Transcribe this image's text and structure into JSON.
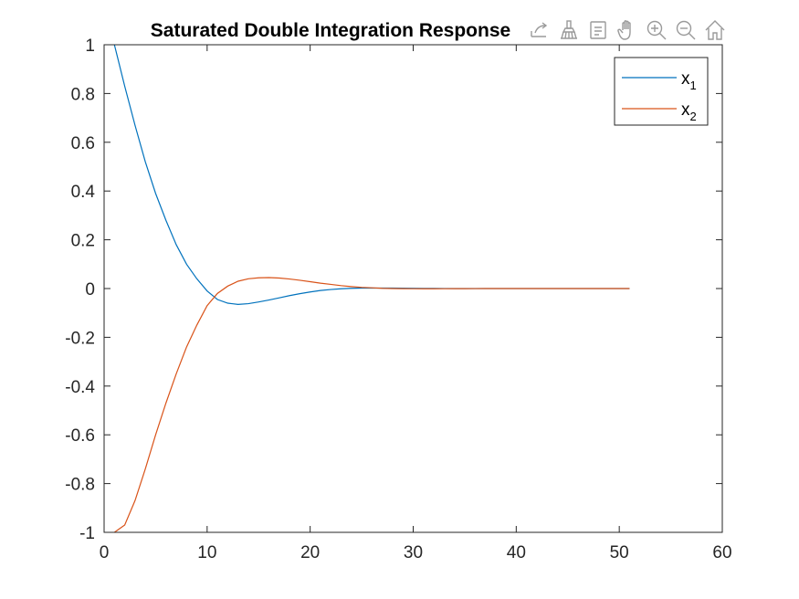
{
  "toolbar": {
    "icons": [
      "export-icon",
      "brush-icon",
      "datatip-icon",
      "pan-icon",
      "zoom-in-icon",
      "zoom-out-icon",
      "home-icon"
    ]
  },
  "chart_data": {
    "type": "line",
    "title": "Saturated Double Integration Response",
    "xlabel": "",
    "ylabel": "",
    "xlim": [
      0,
      60
    ],
    "ylim": [
      -1,
      1
    ],
    "xticks": [
      "0",
      "10",
      "20",
      "30",
      "40",
      "50",
      "60"
    ],
    "yticks": [
      "-1",
      "-0.8",
      "-0.6",
      "-0.4",
      "-0.2",
      "0",
      "0.2",
      "0.4",
      "0.6",
      "0.8",
      "1"
    ],
    "grid": false,
    "legend_position": "top-right",
    "x": [
      1,
      2,
      3,
      4,
      5,
      6,
      7,
      8,
      9,
      10,
      11,
      12,
      13,
      14,
      15,
      16,
      17,
      18,
      19,
      20,
      21,
      22,
      23,
      24,
      25,
      26,
      27,
      28,
      29,
      30,
      31,
      32,
      33,
      34,
      35,
      36,
      37,
      38,
      39,
      40,
      41,
      42,
      43,
      44,
      45,
      46,
      47,
      48,
      49,
      50,
      51
    ],
    "series": [
      {
        "name": "x",
        "subscript": "1",
        "color": "#0072BD",
        "values": [
          1.0,
          0.83,
          0.67,
          0.52,
          0.39,
          0.28,
          0.18,
          0.1,
          0.04,
          -0.01,
          -0.045,
          -0.06,
          -0.065,
          -0.062,
          -0.055,
          -0.047,
          -0.038,
          -0.029,
          -0.021,
          -0.014,
          -0.008,
          -0.004,
          -0.001,
          0.001,
          0.002,
          0.002,
          0.002,
          0.002,
          0.0015,
          0.001,
          0.0008,
          0.0005,
          0.0003,
          0.0001,
          0,
          0,
          0,
          0,
          0,
          0,
          0,
          0,
          0,
          0,
          0,
          0,
          0,
          0,
          0,
          0,
          0
        ]
      },
      {
        "name": "x",
        "subscript": "2",
        "color": "#D95319",
        "values": [
          -1.0,
          -0.97,
          -0.87,
          -0.74,
          -0.6,
          -0.47,
          -0.35,
          -0.24,
          -0.15,
          -0.07,
          -0.02,
          0.01,
          0.03,
          0.04,
          0.044,
          0.045,
          0.043,
          0.039,
          0.034,
          0.028,
          0.022,
          0.017,
          0.012,
          0.008,
          0.005,
          0.003,
          0.001,
          0,
          -0.0005,
          -0.0008,
          -0.001,
          -0.001,
          -0.0008,
          -0.0006,
          -0.0004,
          -0.0002,
          0,
          0,
          0,
          0,
          0,
          0,
          0,
          0,
          0,
          0,
          0,
          0,
          0,
          0,
          0
        ]
      }
    ]
  }
}
